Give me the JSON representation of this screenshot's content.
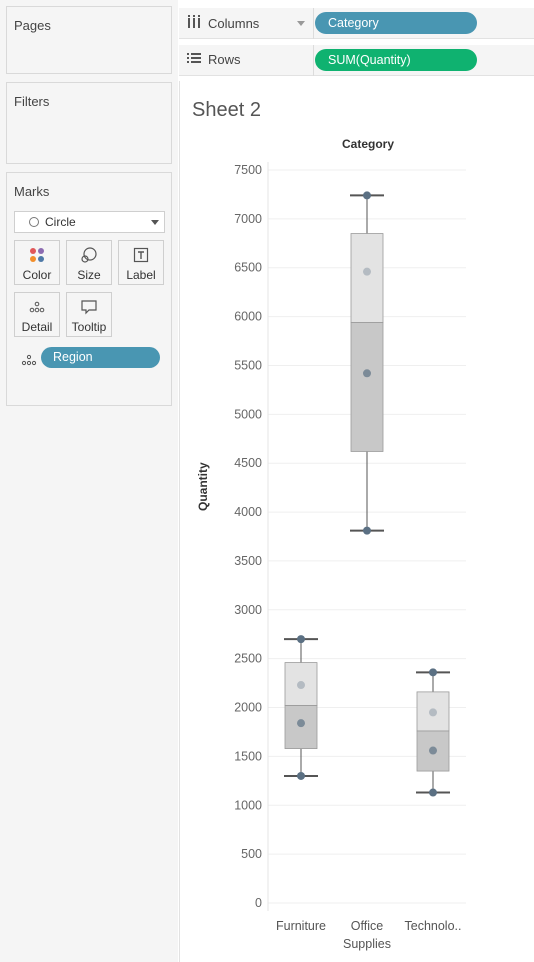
{
  "left_panel": {
    "pages": {
      "title": "Pages"
    },
    "filters": {
      "title": "Filters"
    },
    "marks": {
      "title": "Marks",
      "mark_type": "Circle",
      "buttons": [
        {
          "label": "Color",
          "icon": "color-dots-icon"
        },
        {
          "label": "Size",
          "icon": "size-icon"
        },
        {
          "label": "Label",
          "icon": "label-icon"
        },
        {
          "label": "Detail",
          "icon": "detail-dots-icon"
        },
        {
          "label": "Tooltip",
          "icon": "tooltip-icon"
        }
      ],
      "detail_field": "Region"
    }
  },
  "shelves": {
    "columns": {
      "label": "Columns",
      "field": "Category",
      "icon": "columns-icon"
    },
    "rows": {
      "label": "Rows",
      "field": "SUM(Quantity)",
      "icon": "rows-icon"
    }
  },
  "view": {
    "sheet_title": "Sheet 2"
  },
  "colors": {
    "pill_dimension": "#4996b2",
    "pill_measure": "#0fb270",
    "box_upper": "#e3e3e3",
    "box_lower": "#c8c8c8",
    "whisker": "#555555",
    "point": "#5b7083"
  },
  "chart_data": {
    "type": "box",
    "title": "Category",
    "ylabel": "Quantity",
    "ylim": [
      0,
      7500
    ],
    "yticks": [
      0,
      500,
      1000,
      1500,
      2000,
      2500,
      3000,
      3500,
      4000,
      4500,
      5000,
      5500,
      6000,
      6500,
      7000,
      7500
    ],
    "categories": [
      "Furniture",
      "Office\nSupplies",
      "Technolo.."
    ],
    "boxes": [
      {
        "category": "Furniture",
        "whisker_low": 1300,
        "q1": 1580,
        "median": 2020,
        "q3": 2460,
        "whisker_high": 2700,
        "points": [
          1300,
          1840,
          2230,
          2700
        ]
      },
      {
        "category": "Office Supplies",
        "whisker_low": 3810,
        "q1": 4620,
        "median": 5940,
        "q3": 6850,
        "whisker_high": 7240,
        "points": [
          3810,
          5420,
          6460,
          7240
        ]
      },
      {
        "category": "Technolo..",
        "whisker_low": 1130,
        "q1": 1350,
        "median": 1760,
        "q3": 2160,
        "whisker_high": 2360,
        "points": [
          1130,
          1560,
          1950,
          2360
        ]
      }
    ]
  }
}
